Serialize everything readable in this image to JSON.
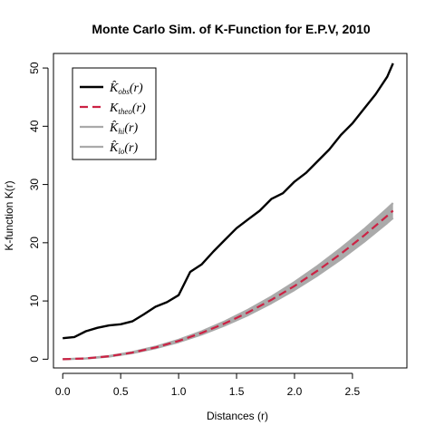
{
  "chart_data": {
    "type": "line",
    "title": "Monte Carlo Sim. of K-Function for E.P.V, 2010",
    "xlabel": "Distances (r)",
    "ylabel": "K-function K(r)",
    "xlim": [
      -0.08,
      2.97
    ],
    "ylim": [
      -1.5,
      52.5
    ],
    "xticks": [
      0.0,
      0.5,
      1.0,
      1.5,
      2.0,
      2.5
    ],
    "xtick_labels": [
      "0.0",
      "0.5",
      "1.0",
      "1.5",
      "2.0",
      "2.5"
    ],
    "yticks": [
      0,
      10,
      20,
      30,
      40,
      50
    ],
    "ytick_labels": [
      "0",
      "10",
      "20",
      "30",
      "40",
      "50"
    ],
    "grid": false,
    "legend_position": "top-left",
    "series": [
      {
        "name": "K̂obs(r)",
        "legend_main": "K̂",
        "legend_sub": "obs",
        "legend_suffix": "(r)",
        "color": "#000000",
        "style": "solid",
        "x": [
          0.0,
          0.1,
          0.2,
          0.3,
          0.4,
          0.5,
          0.6,
          0.7,
          0.8,
          0.9,
          1.0,
          1.1,
          1.2,
          1.3,
          1.4,
          1.5,
          1.6,
          1.7,
          1.8,
          1.9,
          2.0,
          2.1,
          2.2,
          2.3,
          2.4,
          2.5,
          2.6,
          2.7,
          2.8,
          2.85
        ],
        "y": [
          3.6,
          3.8,
          4.8,
          5.4,
          5.8,
          6.0,
          6.5,
          7.7,
          9.0,
          9.8,
          11.0,
          15.0,
          16.3,
          18.5,
          20.5,
          22.5,
          24.0,
          25.5,
          27.5,
          28.5,
          30.5,
          32.0,
          34.0,
          36.0,
          38.5,
          40.5,
          43.0,
          45.5,
          48.5,
          50.8
        ]
      },
      {
        "name": "Ktheo(r)",
        "legend_main": "K",
        "legend_sub": "theo",
        "legend_suffix": "(r)",
        "color": "#cc2244",
        "style": "dashed",
        "x": [
          0.0,
          0.2,
          0.4,
          0.6,
          0.8,
          1.0,
          1.2,
          1.4,
          1.6,
          1.8,
          2.0,
          2.2,
          2.4,
          2.6,
          2.8,
          2.85
        ],
        "y": [
          0.0,
          0.13,
          0.5,
          1.13,
          2.01,
          3.14,
          4.52,
          6.16,
          8.04,
          10.18,
          12.57,
          15.21,
          18.1,
          21.24,
          24.63,
          25.52
        ]
      },
      {
        "name": "K̂hi(r)",
        "legend_main": "K̂",
        "legend_sub": "hi",
        "legend_suffix": "(r)",
        "color": "#aaaaaa",
        "style": "solid",
        "x": [
          0.0,
          0.2,
          0.4,
          0.6,
          0.8,
          1.0,
          1.2,
          1.4,
          1.6,
          1.8,
          2.0,
          2.2,
          2.4,
          2.6,
          2.8,
          2.85
        ],
        "y": [
          0.0,
          0.15,
          0.55,
          1.22,
          2.15,
          3.34,
          4.8,
          6.52,
          8.5,
          10.75,
          13.26,
          16.03,
          19.05,
          22.33,
          25.87,
          26.8
        ]
      },
      {
        "name": "K̂lo(r)",
        "legend_main": "K̂",
        "legend_sub": "lo",
        "legend_suffix": "(r)",
        "color": "#aaaaaa",
        "style": "solid",
        "x": [
          0.0,
          0.2,
          0.4,
          0.6,
          0.8,
          1.0,
          1.2,
          1.4,
          1.6,
          1.8,
          2.0,
          2.2,
          2.4,
          2.6,
          2.8,
          2.85
        ],
        "y": [
          0.0,
          0.11,
          0.45,
          1.04,
          1.87,
          2.94,
          4.24,
          5.8,
          7.58,
          9.61,
          11.88,
          14.39,
          17.15,
          20.15,
          23.39,
          24.24
        ]
      }
    ]
  }
}
